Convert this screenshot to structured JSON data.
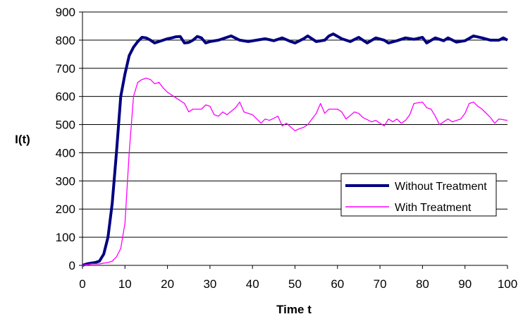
{
  "chart_data": {
    "type": "line",
    "title": "",
    "xlabel": "Time t",
    "ylabel": "I(t)",
    "xlim": [
      0,
      100
    ],
    "ylim": [
      0,
      900
    ],
    "x_ticks": [
      0,
      10,
      20,
      30,
      40,
      50,
      60,
      70,
      80,
      90,
      100
    ],
    "y_ticks": [
      0,
      100,
      200,
      300,
      400,
      500,
      600,
      700,
      800,
      900
    ],
    "grid": "horizontal",
    "legend_position": "lower-right",
    "series": [
      {
        "name": "Without Treatment",
        "color": "#000080",
        "points": [
          [
            0,
            0
          ],
          [
            1,
            5
          ],
          [
            2,
            8
          ],
          [
            3,
            10
          ],
          [
            4,
            15
          ],
          [
            5,
            40
          ],
          [
            6,
            100
          ],
          [
            7,
            220
          ],
          [
            8,
            400
          ],
          [
            9,
            600
          ],
          [
            10,
            680
          ],
          [
            11,
            745
          ],
          [
            12,
            775
          ],
          [
            13,
            795
          ],
          [
            14,
            810
          ],
          [
            15,
            808
          ],
          [
            16,
            800
          ],
          [
            17,
            790
          ],
          [
            18,
            795
          ],
          [
            19,
            800
          ],
          [
            20,
            805
          ],
          [
            21,
            808
          ],
          [
            22,
            812
          ],
          [
            23,
            813
          ],
          [
            24,
            790
          ],
          [
            25,
            792
          ],
          [
            26,
            800
          ],
          [
            27,
            813
          ],
          [
            28,
            808
          ],
          [
            29,
            790
          ],
          [
            30,
            795
          ],
          [
            32,
            800
          ],
          [
            34,
            810
          ],
          [
            35,
            815
          ],
          [
            37,
            800
          ],
          [
            39,
            795
          ],
          [
            41,
            800
          ],
          [
            43,
            805
          ],
          [
            45,
            798
          ],
          [
            47,
            808
          ],
          [
            49,
            795
          ],
          [
            50,
            790
          ],
          [
            52,
            805
          ],
          [
            53,
            815
          ],
          [
            55,
            795
          ],
          [
            57,
            800
          ],
          [
            58,
            815
          ],
          [
            59,
            822
          ],
          [
            61,
            805
          ],
          [
            63,
            795
          ],
          [
            65,
            810
          ],
          [
            67,
            790
          ],
          [
            69,
            808
          ],
          [
            71,
            800
          ],
          [
            72,
            790
          ],
          [
            74,
            798
          ],
          [
            76,
            808
          ],
          [
            78,
            803
          ],
          [
            80,
            810
          ],
          [
            81,
            790
          ],
          [
            83,
            808
          ],
          [
            85,
            798
          ],
          [
            86,
            808
          ],
          [
            88,
            793
          ],
          [
            90,
            798
          ],
          [
            92,
            815
          ],
          [
            94,
            808
          ],
          [
            96,
            800
          ],
          [
            98,
            800
          ],
          [
            99,
            808
          ],
          [
            100,
            800
          ]
        ]
      },
      {
        "name": "With Treatment",
        "color": "#FF00FF",
        "points": [
          [
            0,
            0
          ],
          [
            2,
            5
          ],
          [
            4,
            5
          ],
          [
            5,
            8
          ],
          [
            6,
            10
          ],
          [
            7,
            15
          ],
          [
            8,
            30
          ],
          [
            9,
            60
          ],
          [
            10,
            150
          ],
          [
            11,
            400
          ],
          [
            12,
            600
          ],
          [
            13,
            650
          ],
          [
            14,
            660
          ],
          [
            15,
            665
          ],
          [
            16,
            660
          ],
          [
            17,
            645
          ],
          [
            18,
            650
          ],
          [
            19,
            630
          ],
          [
            20,
            615
          ],
          [
            21,
            605
          ],
          [
            22,
            595
          ],
          [
            24,
            575
          ],
          [
            25,
            545
          ],
          [
            26,
            555
          ],
          [
            28,
            555
          ],
          [
            29,
            570
          ],
          [
            30,
            565
          ],
          [
            31,
            535
          ],
          [
            32,
            530
          ],
          [
            33,
            545
          ],
          [
            34,
            535
          ],
          [
            36,
            560
          ],
          [
            37,
            580
          ],
          [
            38,
            545
          ],
          [
            40,
            535
          ],
          [
            42,
            505
          ],
          [
            43,
            520
          ],
          [
            44,
            515
          ],
          [
            46,
            530
          ],
          [
            47,
            495
          ],
          [
            48,
            505
          ],
          [
            50,
            478
          ],
          [
            51,
            485
          ],
          [
            52,
            490
          ],
          [
            53,
            500
          ],
          [
            55,
            540
          ],
          [
            56,
            575
          ],
          [
            57,
            540
          ],
          [
            58,
            555
          ],
          [
            60,
            555
          ],
          [
            61,
            545
          ],
          [
            62,
            520
          ],
          [
            64,
            545
          ],
          [
            65,
            540
          ],
          [
            66,
            525
          ],
          [
            68,
            510
          ],
          [
            69,
            515
          ],
          [
            70,
            505
          ],
          [
            71,
            495
          ],
          [
            72,
            520
          ],
          [
            73,
            510
          ],
          [
            74,
            520
          ],
          [
            75,
            505
          ],
          [
            76,
            515
          ],
          [
            77,
            535
          ],
          [
            78,
            575
          ],
          [
            80,
            580
          ],
          [
            81,
            560
          ],
          [
            82,
            555
          ],
          [
            83,
            530
          ],
          [
            84,
            500
          ],
          [
            86,
            520
          ],
          [
            87,
            510
          ],
          [
            88,
            515
          ],
          [
            89,
            520
          ],
          [
            90,
            540
          ],
          [
            91,
            575
          ],
          [
            92,
            580
          ],
          [
            93,
            565
          ],
          [
            94,
            555
          ],
          [
            95,
            540
          ],
          [
            96,
            525
          ],
          [
            97,
            505
          ],
          [
            98,
            520
          ],
          [
            100,
            515
          ]
        ]
      }
    ]
  }
}
